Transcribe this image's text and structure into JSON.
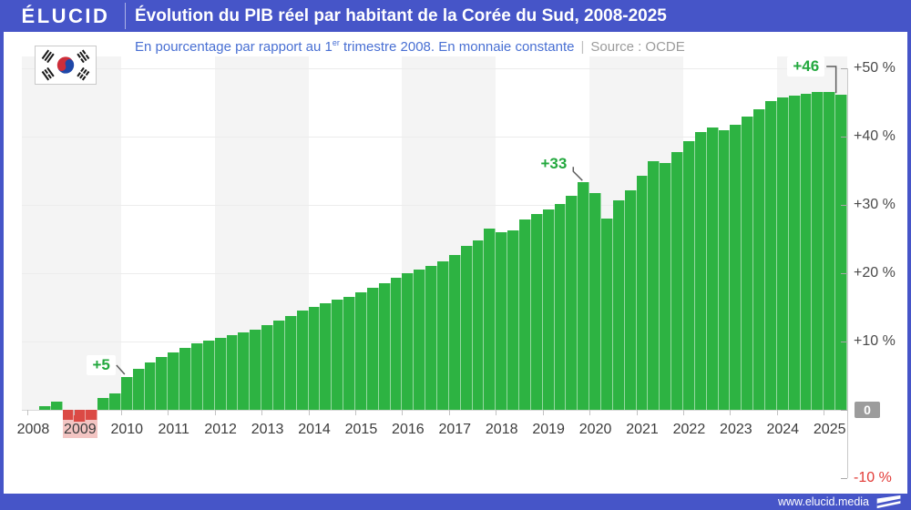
{
  "header": {
    "logo": "ÉLUCID",
    "title": "Évolution du PIB réel par habitant de la Corée du Sud, 2008-2025"
  },
  "subtitle": {
    "text_prefix": "En pourcentage par rapport au 1",
    "sup": "er",
    "text_suffix": " trimestre 2008. En monnaie constante",
    "separator": "|",
    "source": "Source : OCDE"
  },
  "flag": {
    "country": "Corée du Sud"
  },
  "footer": {
    "url": "www.elucid.media"
  },
  "y_axis": {
    "ticks": [
      {
        "value": 50,
        "label": "+50 %"
      },
      {
        "value": 40,
        "label": "+40 %"
      },
      {
        "value": 30,
        "label": "+30 %"
      },
      {
        "value": 20,
        "label": "+20 %"
      },
      {
        "value": 10,
        "label": "+10 %"
      },
      {
        "value": 0,
        "label": "0"
      },
      {
        "value": -10,
        "label": "-10 %"
      }
    ]
  },
  "chart_data": {
    "type": "bar",
    "title": "Évolution du PIB réel par habitant de la Corée du Sud, 2008-2025",
    "subtitle": "En pourcentage par rapport au 1er trimestre 2008. En monnaie constante",
    "source": "Source : OCDE",
    "unit": "%",
    "ylim": [
      -10,
      50
    ],
    "grid": true,
    "years": [
      2008,
      2009,
      2010,
      2011,
      2012,
      2013,
      2014,
      2015,
      2016,
      2017,
      2018,
      2019,
      2020,
      2021,
      2022,
      2023,
      2024,
      2025
    ],
    "quarters": [
      "T1 2008",
      "T2 2008",
      "T3 2008",
      "T4 2008",
      "T1 2009",
      "T2 2009",
      "T3 2009",
      "T4 2009",
      "T1 2010",
      "T2 2010",
      "T3 2010",
      "T4 2010",
      "T1 2011",
      "T2 2011",
      "T3 2011",
      "T4 2011",
      "T1 2012",
      "T2 2012",
      "T3 2012",
      "T4 2012",
      "T1 2013",
      "T2 2013",
      "T3 2013",
      "T4 2013",
      "T1 2014",
      "T2 2014",
      "T3 2014",
      "T4 2014",
      "T1 2015",
      "T2 2015",
      "T3 2015",
      "T4 2015",
      "T1 2016",
      "T2 2016",
      "T3 2016",
      "T4 2016",
      "T1 2017",
      "T2 2017",
      "T3 2017",
      "T4 2017",
      "T1 2018",
      "T2 2018",
      "T3 2018",
      "T4 2018",
      "T1 2019",
      "T2 2019",
      "T3 2019",
      "T4 2019",
      "T1 2020",
      "T2 2020",
      "T3 2020",
      "T4 2020",
      "T1 2021",
      "T2 2021",
      "T3 2021",
      "T4 2021",
      "T1 2022",
      "T2 2022",
      "T3 2022",
      "T4 2022",
      "T1 2023",
      "T2 2023",
      "T3 2023",
      "T4 2023",
      "T1 2024",
      "T2 2024",
      "T3 2024",
      "T4 2024",
      "T1 2025",
      "T2 2025"
    ],
    "values": [
      0,
      0.5,
      1.2,
      -1.5,
      -1.7,
      -1.5,
      1.7,
      2.4,
      4.8,
      6,
      7,
      7.7,
      8.4,
      9.1,
      9.7,
      10.2,
      10.6,
      11,
      11.4,
      11.8,
      12.4,
      13.1,
      13.8,
      14.5,
      15.1,
      15.6,
      16.1,
      16.6,
      17.2,
      17.9,
      18.6,
      19.3,
      20,
      20.6,
      21.1,
      21.7,
      22.7,
      24,
      24.8,
      26.5,
      26,
      26.3,
      27.9,
      28.7,
      29.3,
      30.2,
      31.3,
      33.3,
      31.8,
      28,
      30.7,
      32.1,
      34.3,
      36.4,
      36.1,
      37.8,
      39.3,
      40.7,
      41.3,
      40.9,
      41.8,
      42.9,
      44,
      45.2,
      45.8,
      46,
      46.3,
      46.6,
      46.6,
      46.1
    ],
    "negative_period": {
      "from": "T4 2008",
      "to": "T2 2009"
    },
    "annotations": [
      {
        "label": "+5",
        "index": 8,
        "quarter": "T1 2010"
      },
      {
        "label": "+33",
        "index": 47,
        "quarter": "T4 2019"
      },
      {
        "label": "+46",
        "index": 69,
        "quarter": "T2 2025"
      }
    ],
    "colors": {
      "positive": "#2db342",
      "negative": "#db4a45",
      "annotation": "#23a83e",
      "band": "#f4f4f4",
      "accent_blue": "#4655c8"
    }
  }
}
